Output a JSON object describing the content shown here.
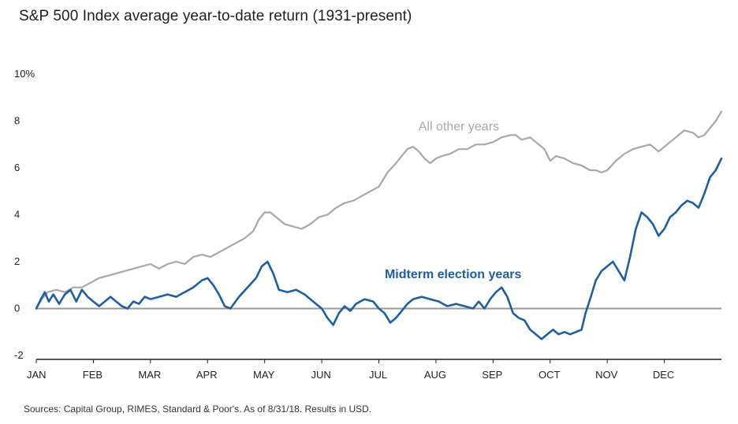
{
  "title": "S&P 500 Index average year-to-date return (1931-present)",
  "source": "Sources: Capital Group, RIMES, Standard & Poor's. As of 8/31/18. Results in USD.",
  "colors": {
    "other": "#a8a8a8",
    "midterm": "#1f5fa0",
    "zero": "#999999",
    "axis": "#222222",
    "other_label": "#a8a8a8",
    "midterm_label": "#1f5fa0"
  },
  "chart_data": {
    "type": "line",
    "title": "S&P 500 Index average year-to-date return (1931-present)",
    "xlabel": "",
    "ylabel": "",
    "months": [
      "JAN",
      "FEB",
      "MAR",
      "APR",
      "MAY",
      "JUN",
      "JUL",
      "AUG",
      "SEP",
      "OCT",
      "NOV",
      "DEC"
    ],
    "yticks": [
      {
        "value": 10,
        "label": "10%"
      },
      {
        "value": 8,
        "label": "8"
      },
      {
        "value": 6,
        "label": "6"
      },
      {
        "value": 4,
        "label": "4"
      },
      {
        "value": 2,
        "label": "2"
      },
      {
        "value": 0,
        "label": "0"
      },
      {
        "value": -2,
        "label": "-2"
      }
    ],
    "ylim": [
      -2,
      10
    ],
    "xlim": [
      0,
      12
    ],
    "grid": false,
    "series": [
      {
        "name": "All other years",
        "points": [
          [
            0.0,
            0.0
          ],
          [
            0.1,
            0.4
          ],
          [
            0.2,
            0.7
          ],
          [
            0.35,
            0.8
          ],
          [
            0.5,
            0.7
          ],
          [
            0.65,
            0.9
          ],
          [
            0.8,
            0.9
          ],
          [
            0.95,
            1.1
          ],
          [
            1.1,
            1.3
          ],
          [
            1.25,
            1.4
          ],
          [
            1.4,
            1.5
          ],
          [
            1.55,
            1.6
          ],
          [
            1.7,
            1.7
          ],
          [
            1.85,
            1.8
          ],
          [
            2.0,
            1.9
          ],
          [
            2.15,
            1.7
          ],
          [
            2.3,
            1.9
          ],
          [
            2.45,
            2.0
          ],
          [
            2.6,
            1.9
          ],
          [
            2.75,
            2.2
          ],
          [
            2.9,
            2.3
          ],
          [
            3.05,
            2.2
          ],
          [
            3.2,
            2.4
          ],
          [
            3.35,
            2.6
          ],
          [
            3.5,
            2.8
          ],
          [
            3.65,
            3.0
          ],
          [
            3.8,
            3.3
          ],
          [
            3.9,
            3.8
          ],
          [
            4.0,
            4.1
          ],
          [
            4.1,
            4.1
          ],
          [
            4.2,
            3.9
          ],
          [
            4.35,
            3.6
          ],
          [
            4.5,
            3.5
          ],
          [
            4.65,
            3.4
          ],
          [
            4.8,
            3.6
          ],
          [
            4.95,
            3.9
          ],
          [
            5.1,
            4.0
          ],
          [
            5.25,
            4.3
          ],
          [
            5.4,
            4.5
          ],
          [
            5.55,
            4.6
          ],
          [
            5.7,
            4.8
          ],
          [
            5.85,
            5.0
          ],
          [
            6.0,
            5.2
          ],
          [
            6.15,
            5.8
          ],
          [
            6.3,
            6.2
          ],
          [
            6.4,
            6.5
          ],
          [
            6.5,
            6.8
          ],
          [
            6.6,
            6.9
          ],
          [
            6.7,
            6.7
          ],
          [
            6.8,
            6.4
          ],
          [
            6.9,
            6.2
          ],
          [
            7.0,
            6.4
          ],
          [
            7.1,
            6.5
          ],
          [
            7.25,
            6.6
          ],
          [
            7.4,
            6.8
          ],
          [
            7.55,
            6.8
          ],
          [
            7.7,
            7.0
          ],
          [
            7.85,
            7.0
          ],
          [
            8.0,
            7.1
          ],
          [
            8.15,
            7.3
          ],
          [
            8.3,
            7.4
          ],
          [
            8.4,
            7.4
          ],
          [
            8.5,
            7.2
          ],
          [
            8.65,
            7.3
          ],
          [
            8.8,
            7.0
          ],
          [
            8.9,
            6.8
          ],
          [
            9.0,
            6.3
          ],
          [
            9.1,
            6.5
          ],
          [
            9.25,
            6.4
          ],
          [
            9.4,
            6.2
          ],
          [
            9.55,
            6.1
          ],
          [
            9.7,
            5.9
          ],
          [
            9.8,
            5.9
          ],
          [
            9.9,
            5.8
          ],
          [
            10.0,
            5.9
          ],
          [
            10.15,
            6.3
          ],
          [
            10.3,
            6.6
          ],
          [
            10.45,
            6.8
          ],
          [
            10.6,
            6.9
          ],
          [
            10.75,
            7.0
          ],
          [
            10.9,
            6.7
          ],
          [
            11.05,
            7.0
          ],
          [
            11.2,
            7.3
          ],
          [
            11.35,
            7.6
          ],
          [
            11.5,
            7.5
          ],
          [
            11.6,
            7.3
          ],
          [
            11.7,
            7.4
          ],
          [
            11.8,
            7.7
          ],
          [
            11.9,
            8.0
          ],
          [
            12.0,
            8.4
          ]
        ]
      },
      {
        "name": "Midterm election years",
        "points": [
          [
            0.0,
            0.0
          ],
          [
            0.08,
            0.4
          ],
          [
            0.15,
            0.7
          ],
          [
            0.22,
            0.3
          ],
          [
            0.3,
            0.6
          ],
          [
            0.4,
            0.2
          ],
          [
            0.5,
            0.6
          ],
          [
            0.6,
            0.8
          ],
          [
            0.7,
            0.3
          ],
          [
            0.8,
            0.8
          ],
          [
            0.9,
            0.5
          ],
          [
            1.0,
            0.3
          ],
          [
            1.1,
            0.1
          ],
          [
            1.2,
            0.3
          ],
          [
            1.3,
            0.5
          ],
          [
            1.4,
            0.3
          ],
          [
            1.5,
            0.1
          ],
          [
            1.6,
            0.0
          ],
          [
            1.7,
            0.3
          ],
          [
            1.8,
            0.2
          ],
          [
            1.9,
            0.5
          ],
          [
            2.0,
            0.4
          ],
          [
            2.15,
            0.5
          ],
          [
            2.3,
            0.6
          ],
          [
            2.45,
            0.5
          ],
          [
            2.6,
            0.7
          ],
          [
            2.75,
            0.9
          ],
          [
            2.9,
            1.2
          ],
          [
            3.0,
            1.3
          ],
          [
            3.1,
            1.0
          ],
          [
            3.2,
            0.6
          ],
          [
            3.3,
            0.1
          ],
          [
            3.4,
            0.0
          ],
          [
            3.55,
            0.5
          ],
          [
            3.7,
            0.9
          ],
          [
            3.85,
            1.3
          ],
          [
            3.95,
            1.8
          ],
          [
            4.05,
            2.0
          ],
          [
            4.15,
            1.5
          ],
          [
            4.25,
            0.8
          ],
          [
            4.4,
            0.7
          ],
          [
            4.55,
            0.8
          ],
          [
            4.7,
            0.6
          ],
          [
            4.85,
            0.3
          ],
          [
            5.0,
            0.0
          ],
          [
            5.1,
            -0.4
          ],
          [
            5.2,
            -0.7
          ],
          [
            5.3,
            -0.2
          ],
          [
            5.4,
            0.1
          ],
          [
            5.5,
            -0.1
          ],
          [
            5.6,
            0.2
          ],
          [
            5.75,
            0.4
          ],
          [
            5.9,
            0.3
          ],
          [
            6.0,
            0.0
          ],
          [
            6.1,
            -0.2
          ],
          [
            6.2,
            -0.6
          ],
          [
            6.3,
            -0.4
          ],
          [
            6.4,
            -0.1
          ],
          [
            6.5,
            0.2
          ],
          [
            6.6,
            0.4
          ],
          [
            6.75,
            0.5
          ],
          [
            6.9,
            0.4
          ],
          [
            7.05,
            0.3
          ],
          [
            7.2,
            0.1
          ],
          [
            7.35,
            0.2
          ],
          [
            7.5,
            0.1
          ],
          [
            7.65,
            0.0
          ],
          [
            7.75,
            0.3
          ],
          [
            7.85,
            0.0
          ],
          [
            7.95,
            0.4
          ],
          [
            8.05,
            0.7
          ],
          [
            8.15,
            0.9
          ],
          [
            8.25,
            0.5
          ],
          [
            8.35,
            -0.2
          ],
          [
            8.45,
            -0.4
          ],
          [
            8.55,
            -0.5
          ],
          [
            8.65,
            -0.9
          ],
          [
            8.75,
            -1.1
          ],
          [
            8.85,
            -1.3
          ],
          [
            8.95,
            -1.1
          ],
          [
            9.05,
            -0.9
          ],
          [
            9.15,
            -1.1
          ],
          [
            9.25,
            -1.0
          ],
          [
            9.35,
            -1.1
          ],
          [
            9.45,
            -1.0
          ],
          [
            9.55,
            -0.9
          ],
          [
            9.62,
            -0.2
          ],
          [
            9.7,
            0.4
          ],
          [
            9.8,
            1.2
          ],
          [
            9.9,
            1.6
          ],
          [
            10.0,
            1.8
          ],
          [
            10.1,
            2.0
          ],
          [
            10.2,
            1.6
          ],
          [
            10.3,
            1.2
          ],
          [
            10.4,
            2.2
          ],
          [
            10.5,
            3.4
          ],
          [
            10.6,
            4.1
          ],
          [
            10.7,
            3.9
          ],
          [
            10.8,
            3.6
          ],
          [
            10.9,
            3.1
          ],
          [
            11.0,
            3.4
          ],
          [
            11.1,
            3.9
          ],
          [
            11.2,
            4.1
          ],
          [
            11.3,
            4.4
          ],
          [
            11.4,
            4.6
          ],
          [
            11.5,
            4.5
          ],
          [
            11.6,
            4.3
          ],
          [
            11.7,
            4.9
          ],
          [
            11.8,
            5.6
          ],
          [
            11.9,
            5.9
          ],
          [
            12.0,
            6.4
          ]
        ]
      }
    ],
    "annotations": [
      {
        "series": "All other years",
        "text": "All other years",
        "x": 7.4,
        "y": 7.6
      },
      {
        "series": "Midterm election years",
        "text": "Midterm election years",
        "x": 7.3,
        "y": 1.3
      }
    ]
  }
}
